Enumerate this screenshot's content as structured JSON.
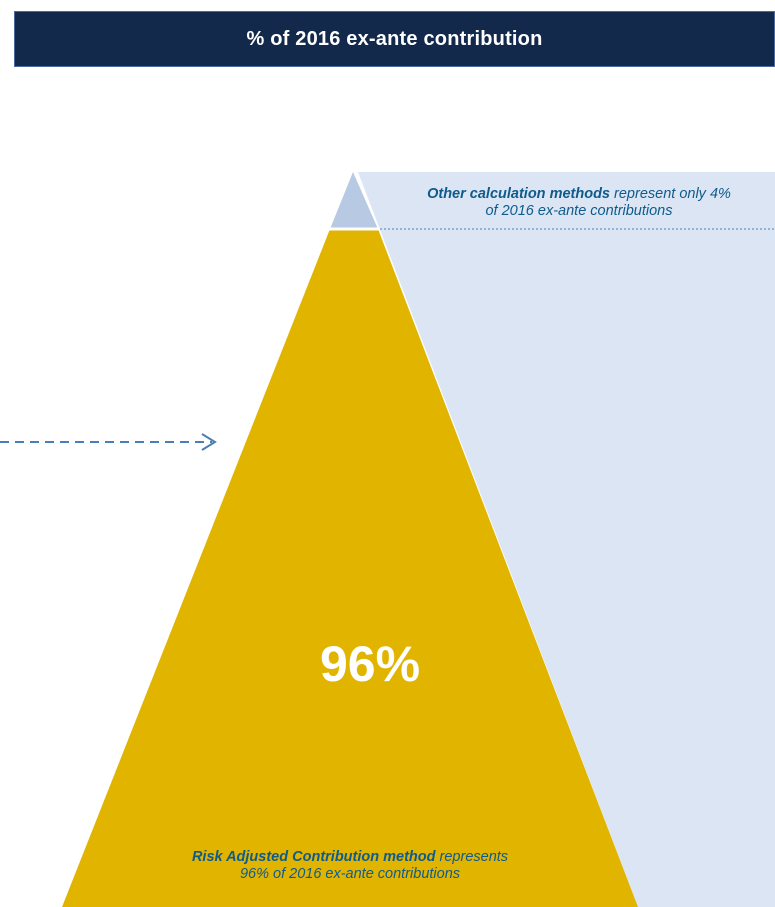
{
  "header": {
    "title": "% of 2016 ex-ante contribution"
  },
  "top_segment": {
    "percent": 4,
    "caption_strong": "Other calculation methods",
    "caption_rest_line1": " represent only 4%",
    "caption_line2": "of 2016 ex-ante contributions"
  },
  "bottom_segment": {
    "percent": 96,
    "big_label": "96%",
    "caption_strong": "Risk Adjusted Contribution method",
    "caption_rest_line1": " represents",
    "caption_line2": "96% of 2016 ex-ante contributions"
  },
  "colors": {
    "header_bg": "#13294b",
    "gold": "#e1b400",
    "light_blue": "#dce5f3",
    "tip_blue": "#b8c9e3",
    "text_blue": "#0f5b8c",
    "arrow_blue": "#4a7fb5"
  }
}
